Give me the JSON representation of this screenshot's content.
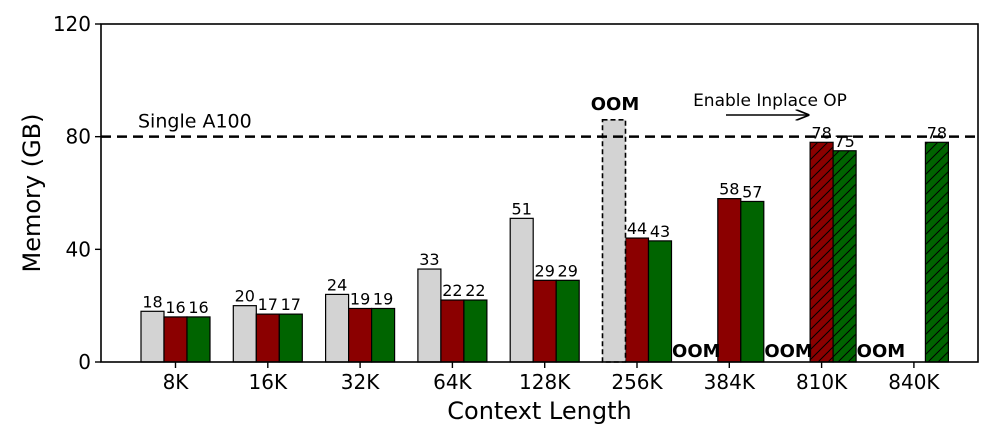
{
  "chart_data": {
    "type": "bar",
    "xlabel": "Context Length",
    "ylabel": "Memory (GB)",
    "ylim": [
      0,
      120
    ],
    "yticks": [
      0,
      40,
      80,
      120
    ],
    "grid": false,
    "categories": [
      "8K",
      "16K",
      "32K",
      "64K",
      "128K",
      "256K",
      "384K",
      "810K",
      "840K"
    ],
    "series": [
      {
        "color": "#d3d3d3",
        "values": [
          18,
          20,
          24,
          33,
          51,
          null,
          null,
          null,
          null
        ],
        "value_labels": [
          "18",
          "20",
          "24",
          "33",
          "51",
          "",
          "",
          "",
          ""
        ]
      },
      {
        "color": "#8b0000",
        "values": [
          16,
          17,
          19,
          22,
          29,
          44,
          58,
          78,
          null
        ],
        "value_labels": [
          "16",
          "17",
          "19",
          "22",
          "29",
          "44",
          "58",
          "78",
          ""
        ]
      },
      {
        "color": "#006400",
        "values": [
          16,
          17,
          19,
          22,
          29,
          43,
          57,
          75,
          78
        ],
        "value_labels": [
          "16",
          "17",
          "19",
          "22",
          "29",
          "43",
          "57",
          "75",
          "78"
        ]
      }
    ],
    "oom_markers": [
      {
        "category": "256K",
        "series_index": 0,
        "label": "OOM",
        "dashed_bar_to": 86
      },
      {
        "category": "384K",
        "series_index": 0,
        "label": "OOM"
      },
      {
        "category": "810K",
        "series_index": 0,
        "label": "OOM"
      },
      {
        "category": "840K",
        "series_index": 0,
        "label": "OOM"
      }
    ],
    "hatched_categories": [
      "810K",
      "840K"
    ],
    "reference_line": {
      "value": 80,
      "label": "Single A100",
      "style": "dashed"
    },
    "annotation": {
      "text": "Enable Inplace OP",
      "arrow": "right"
    }
  }
}
